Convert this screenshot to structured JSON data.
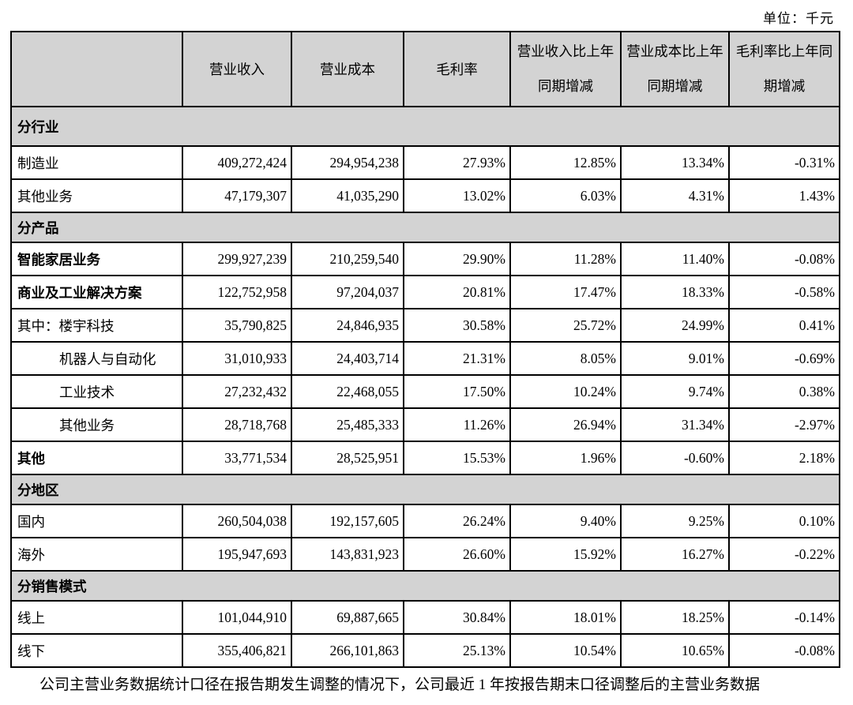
{
  "unit_label": "单位：千元",
  "table": {
    "header": {
      "col0": "",
      "col1": "营业收入",
      "col2": "营业成本",
      "col3": "毛利率",
      "col4_line1": "营业收入比上年",
      "col4_line2": "同期增减",
      "col5_line1": "营业成本比上年",
      "col5_line2": "同期增减",
      "col6_line1": "毛利率比上年同",
      "col6_line2": "期增减"
    },
    "rows": [
      {
        "type": "section",
        "label": "分行业",
        "tall": true
      },
      {
        "type": "data",
        "label": "制造业",
        "bold": false,
        "indent": 0,
        "values": [
          "409,272,424",
          "294,954,238",
          "27.93%",
          "12.85%",
          "13.34%",
          "-0.31%"
        ]
      },
      {
        "type": "data",
        "label": "其他业务",
        "bold": false,
        "indent": 0,
        "values": [
          "47,179,307",
          "41,035,290",
          "13.02%",
          "6.03%",
          "4.31%",
          "1.43%"
        ]
      },
      {
        "type": "section",
        "label": "分产品",
        "tall": false
      },
      {
        "type": "data",
        "label": "智能家居业务",
        "bold": true,
        "indent": 0,
        "values": [
          "299,927,239",
          "210,259,540",
          "29.90%",
          "11.28%",
          "11.40%",
          "-0.08%"
        ]
      },
      {
        "type": "data",
        "label": "商业及工业解决方案",
        "bold": true,
        "indent": 0,
        "values": [
          "122,752,958",
          "97,204,037",
          "20.81%",
          "17.47%",
          "18.33%",
          "-0.58%"
        ]
      },
      {
        "type": "data",
        "label": "其中：楼宇科技",
        "bold": false,
        "indent": 0,
        "values": [
          "35,790,825",
          "24,846,935",
          "30.58%",
          "25.72%",
          "24.99%",
          "0.41%"
        ]
      },
      {
        "type": "data",
        "label": "机器人与自动化",
        "bold": false,
        "indent": 1,
        "values": [
          "31,010,933",
          "24,403,714",
          "21.31%",
          "8.05%",
          "9.01%",
          "-0.69%"
        ]
      },
      {
        "type": "data",
        "label": "工业技术",
        "bold": false,
        "indent": 1,
        "values": [
          "27,232,432",
          "22,468,055",
          "17.50%",
          "10.24%",
          "9.74%",
          "0.38%"
        ]
      },
      {
        "type": "data",
        "label": "其他业务",
        "bold": false,
        "indent": 1,
        "values": [
          "28,718,768",
          "25,485,333",
          "11.26%",
          "26.94%",
          "31.34%",
          "-2.97%"
        ]
      },
      {
        "type": "data",
        "label": "其他",
        "bold": true,
        "indent": 0,
        "values": [
          "33,771,534",
          "28,525,951",
          "15.53%",
          "1.96%",
          "-0.60%",
          "2.18%"
        ]
      },
      {
        "type": "section",
        "label": "分地区",
        "tall": false
      },
      {
        "type": "data",
        "label": "国内",
        "bold": false,
        "indent": 0,
        "values": [
          "260,504,038",
          "192,157,605",
          "26.24%",
          "9.40%",
          "9.25%",
          "0.10%"
        ]
      },
      {
        "type": "data",
        "label": "海外",
        "bold": false,
        "indent": 0,
        "values": [
          "195,947,693",
          "143,831,923",
          "26.60%",
          "15.92%",
          "16.27%",
          "-0.22%"
        ]
      },
      {
        "type": "section",
        "label": "分销售模式",
        "tall": false
      },
      {
        "type": "data",
        "label": "线上",
        "bold": false,
        "indent": 0,
        "values": [
          "101,044,910",
          "69,887,665",
          "30.84%",
          "18.01%",
          "18.25%",
          "-0.14%"
        ]
      },
      {
        "type": "data",
        "label": "线下",
        "bold": false,
        "indent": 0,
        "values": [
          "355,406,821",
          "266,101,863",
          "25.13%",
          "10.54%",
          "10.65%",
          "-0.08%"
        ]
      }
    ]
  },
  "footnote": "公司主营业务数据统计口径在报告期发生调整的情况下，公司最近 1 年按报告期末口径调整后的主营业务数据",
  "colors": {
    "header_bg": "#d3d3d3",
    "section_bg": "#d3d3d3",
    "border": "#000000",
    "background": "#ffffff"
  }
}
